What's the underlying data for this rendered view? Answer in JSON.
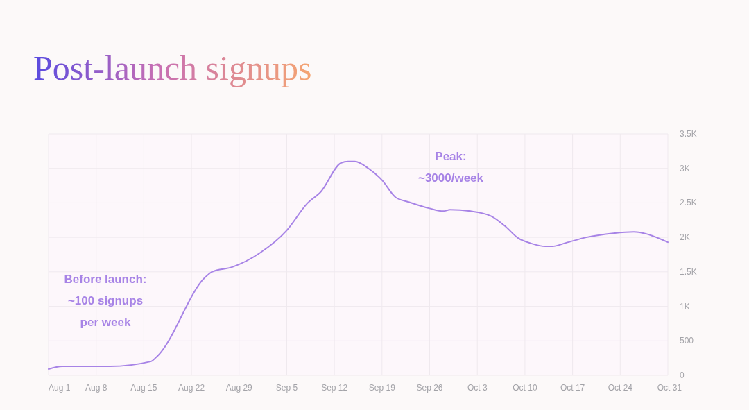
{
  "chart_data": {
    "type": "line",
    "title": "Post-launch signups",
    "x": [
      "--08-01",
      "--08-03",
      "--08-10",
      "--08-16",
      "--08-17",
      "--08-24",
      "--08-25",
      "--08-28",
      "--09-01",
      "--09-05",
      "--09-08",
      "--09-10",
      "--09-13",
      "--09-14",
      "--09-15",
      "--09-17",
      "--09-19",
      "--09-21",
      "--09-23",
      "--09-26",
      "--09-28",
      "--09-29",
      "--10-02",
      "--10-05",
      "--10-07",
      "--10-09",
      "--10-11",
      "--10-13",
      "--10-14",
      "--10-16",
      "--10-19",
      "--10-23",
      "--10-26",
      "--10-27",
      "--10-31"
    ],
    "series": [
      {
        "color": "#a783e6",
        "values": [
          90,
          130,
          130,
          200,
          280,
          1420,
          1500,
          1570,
          1770,
          2100,
          2490,
          2660,
          3080,
          3100,
          3100,
          3000,
          2830,
          2580,
          2510,
          2420,
          2380,
          2400,
          2380,
          2310,
          2170,
          1990,
          1910,
          1870,
          1870,
          1920,
          2000,
          2060,
          2080,
          2070,
          1930
        ]
      }
    ],
    "xlim": [
      "--08-01",
      "--10-31"
    ],
    "xticks": [
      {
        "value": "--08-01",
        "label": "Aug 1"
      },
      {
        "value": "--08-08",
        "label": "Aug 8"
      },
      {
        "value": "--08-15",
        "label": "Aug 15"
      },
      {
        "value": "--08-22",
        "label": "Aug 22"
      },
      {
        "value": "--08-29",
        "label": "Aug 29"
      },
      {
        "value": "--09-05",
        "label": "Sep 5"
      },
      {
        "value": "--09-12",
        "label": "Sep 12"
      },
      {
        "value": "--09-19",
        "label": "Sep 19"
      },
      {
        "value": "--09-26",
        "label": "Sep 26"
      },
      {
        "value": "--10-03",
        "label": "Oct 3"
      },
      {
        "value": "--10-10",
        "label": "Oct 10"
      },
      {
        "value": "--10-17",
        "label": "Oct 17"
      },
      {
        "value": "--10-24",
        "label": "Oct 24"
      },
      {
        "value": "--10-31",
        "label": "Oct 31"
      }
    ],
    "ylim": [
      0,
      3500
    ],
    "yticks": [
      0,
      500,
      {
        "value": 1000,
        "label": "1K"
      },
      {
        "value": 1500,
        "label": "1.5K"
      },
      {
        "value": 2000,
        "label": "2K"
      },
      {
        "value": 2500,
        "label": "2.5K"
      },
      {
        "value": 3000,
        "label": "3K"
      },
      {
        "value": 3500,
        "label": "3.5K"
      }
    ],
    "grid": true,
    "annotations": [
      "Before launch:\n~100 signups\nper week",
      "Peak:\n~3000/week"
    ]
  }
}
